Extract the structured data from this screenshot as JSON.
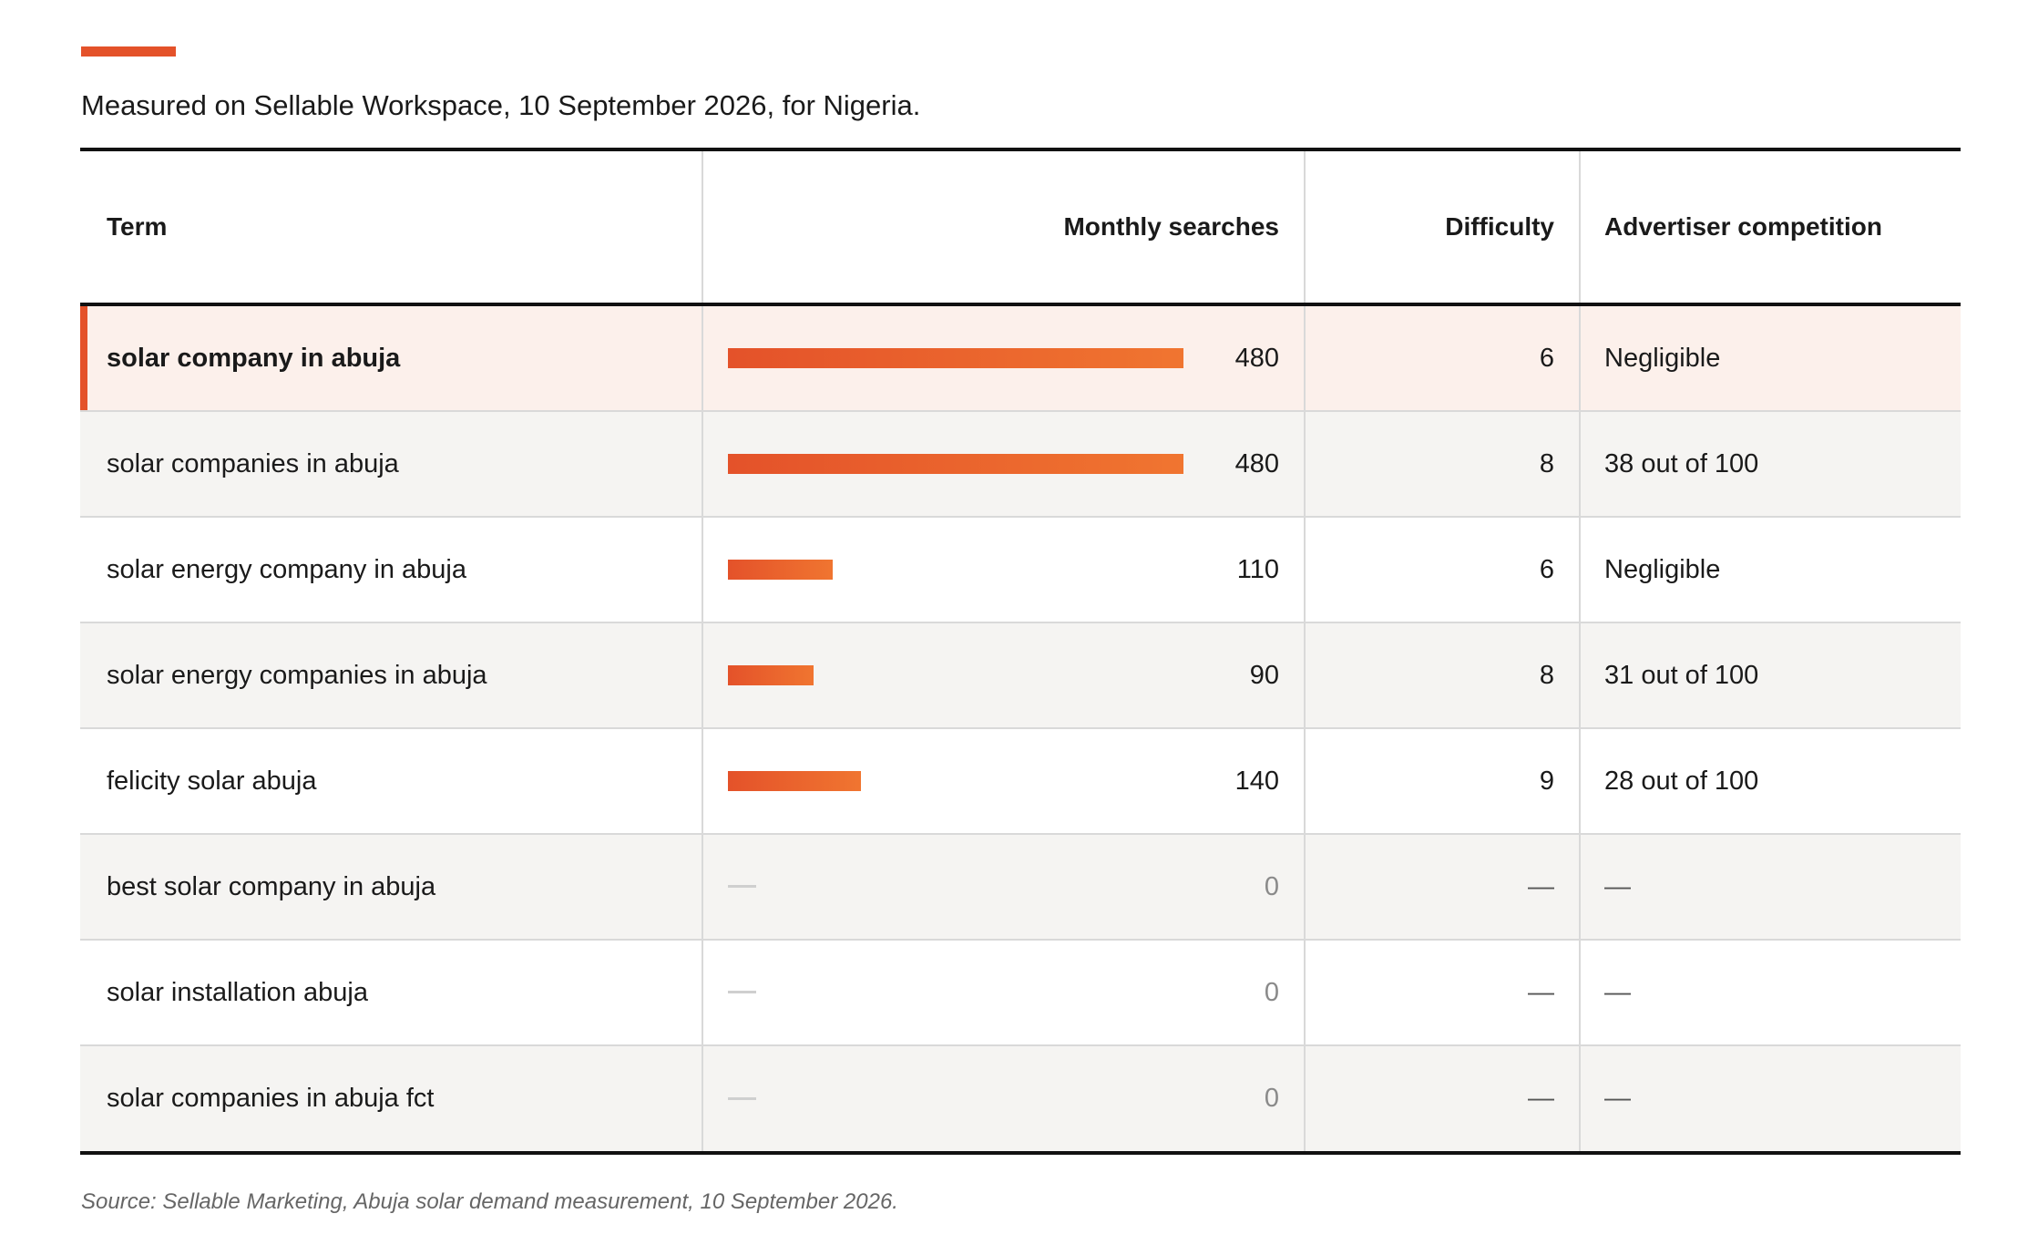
{
  "caption": "Measured on Sellable Workspace, 10 September 2026, for Nigeria.",
  "columns": {
    "term": "Term",
    "searches": "Monthly searches",
    "difficulty": "Difficulty",
    "competition": "Advertiser competition"
  },
  "max_searches": 480,
  "accent_color": "#e4522a",
  "rows": [
    {
      "term": "solar company in abuja",
      "searches": "480",
      "volume": 480,
      "difficulty": "6",
      "competition": "Negligible"
    },
    {
      "term": "solar companies in abuja",
      "searches": "480",
      "volume": 480,
      "difficulty": "8",
      "competition": "38 out of 100"
    },
    {
      "term": "solar energy company in abuja",
      "searches": "110",
      "volume": 110,
      "difficulty": "6",
      "competition": "Negligible"
    },
    {
      "term": "solar energy companies in abuja",
      "searches": "90",
      "volume": 90,
      "difficulty": "8",
      "competition": "31 out of 100"
    },
    {
      "term": "felicity solar abuja",
      "searches": "140",
      "volume": 140,
      "difficulty": "9",
      "competition": "28 out of 100"
    },
    {
      "term": "best solar company in abuja",
      "searches": "0",
      "volume": 0,
      "difficulty": "—",
      "competition": "—"
    },
    {
      "term": "solar installation abuja",
      "searches": "0",
      "volume": 0,
      "difficulty": "—",
      "competition": "—"
    },
    {
      "term": "solar companies in abuja fct",
      "searches": "0",
      "volume": 0,
      "difficulty": "—",
      "competition": "—"
    }
  ],
  "source": "Source: Sellable Marketing, Abuja solar demand measurement, 10 September 2026."
}
